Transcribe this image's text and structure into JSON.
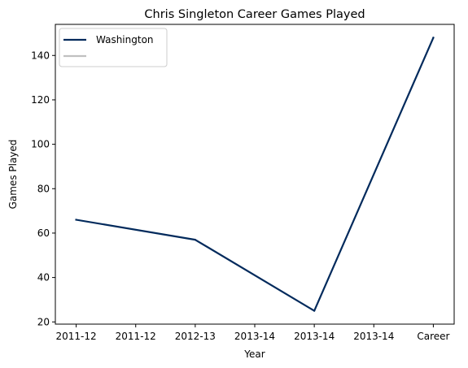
{
  "chart_data": {
    "type": "line",
    "title": "Chris Singleton  Career Games Played",
    "xlabel": "Year",
    "ylabel": "Games Played",
    "categories": [
      "2011-12",
      "2011-12",
      "2012-13",
      "2013-14",
      "2013-14",
      "2013-14",
      "Career"
    ],
    "series": [
      {
        "name": "Washington",
        "color": "#022a5c",
        "points": [
          {
            "x": 0,
            "y": 66
          },
          {
            "x": 2,
            "y": 57
          },
          {
            "x": 4,
            "y": 25
          },
          {
            "x": 6,
            "y": 148
          }
        ]
      }
    ],
    "legend": {
      "placement": "top-left",
      "entries": [
        {
          "label": "Washington",
          "color": "#022a5c"
        },
        {
          "label": "",
          "color": "#c0c0c0"
        }
      ]
    },
    "ylim": [
      19,
      154
    ],
    "yticks": [
      20,
      40,
      60,
      80,
      100,
      120,
      140
    ],
    "grid": false
  }
}
